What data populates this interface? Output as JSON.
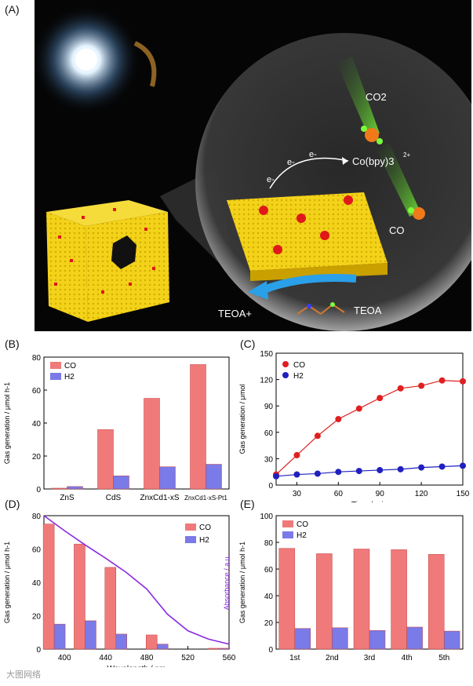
{
  "panel_a": {
    "label": "(A)",
    "co2": "CO2",
    "co": "CO",
    "cobpy": "Co(bpy)3",
    "cobpy_charge": "2+",
    "electron": "e-",
    "teoa_left": "TEOA+",
    "teoa_right": "TEOA"
  },
  "watermark": "大图网络",
  "chart_data": [
    {
      "id": "B",
      "label": "(B)",
      "type": "bar",
      "categories": [
        "ZnS",
        "CdS",
        "ZnxCd1-xS",
        "ZnxCd1-xS-Pt1"
      ],
      "series": [
        {
          "name": "CO",
          "values": [
            0.5,
            36,
            55,
            75.5
          ]
        },
        {
          "name": "H2",
          "values": [
            1.5,
            8,
            13.5,
            15
          ]
        }
      ],
      "ylabel": "Gas generation / μmol h-1",
      "ylim": [
        0,
        80
      ],
      "yticks": [
        0,
        20,
        40,
        60,
        80
      ]
    },
    {
      "id": "C",
      "label": "(C)",
      "type": "line",
      "series": [
        {
          "name": "CO",
          "x": [
            15,
            30,
            45,
            60,
            75,
            90,
            105,
            120,
            135,
            150
          ],
          "y": [
            12,
            34,
            56,
            75,
            87,
            99,
            110,
            113,
            119,
            118
          ]
        },
        {
          "name": "H2",
          "x": [
            15,
            30,
            45,
            60,
            75,
            90,
            105,
            120,
            135,
            150
          ],
          "y": [
            10,
            12,
            13,
            15,
            16,
            17,
            18,
            20,
            21,
            22
          ]
        }
      ],
      "xlabel": "Time / min",
      "ylabel": "Gas generation / μmol",
      "xlim": [
        15,
        150
      ],
      "ylim": [
        0,
        150
      ],
      "xticks": [
        30,
        60,
        90,
        120,
        150
      ],
      "yticks": [
        0,
        30,
        60,
        90,
        120,
        150
      ]
    },
    {
      "id": "D",
      "label": "(D)",
      "type": "bar",
      "categories": [
        390,
        420,
        450,
        490,
        550
      ],
      "series": [
        {
          "name": "CO",
          "values": [
            75,
            63,
            49,
            8.5,
            0.5
          ]
        },
        {
          "name": "H2",
          "values": [
            15,
            17,
            9,
            3,
            0.5
          ]
        }
      ],
      "absorbance": {
        "x": [
          380,
          400,
          420,
          440,
          460,
          480,
          500,
          520,
          540,
          560
        ],
        "y": [
          80,
          71,
          62.5,
          54.5,
          46,
          36,
          21,
          11,
          6,
          3
        ]
      },
      "xlabel": "Wavelength / nm",
      "ylabel": "Gas generation / μmol h-1",
      "ylabel_right": "Absorbance / a.u.",
      "xlim": [
        380,
        560
      ],
      "ylim": [
        0,
        80
      ],
      "xticks": [
        400,
        440,
        480,
        520,
        560
      ],
      "yticks": [
        0,
        20,
        40,
        60,
        80
      ]
    },
    {
      "id": "E",
      "label": "(E)",
      "type": "bar",
      "categories": [
        "1st",
        "2nd",
        "3rd",
        "4th",
        "5th"
      ],
      "series": [
        {
          "name": "CO",
          "values": [
            75.5,
            71.5,
            75,
            74.5,
            71
          ]
        },
        {
          "name": "H2",
          "values": [
            15.5,
            16,
            14,
            16.5,
            13.5
          ]
        }
      ],
      "legend": [
        "CO",
        "H2"
      ],
      "ylabel": "Gas generation / μmol h-1",
      "ylim": [
        0,
        100
      ],
      "yticks": [
        0,
        20,
        40,
        60,
        80,
        100
      ]
    }
  ],
  "colors": {
    "co": "#f07a7a",
    "h2": "#7a7ae8",
    "absorbance": "#8a2be2",
    "co_line": "#e02020",
    "h2_line": "#2020c0"
  }
}
